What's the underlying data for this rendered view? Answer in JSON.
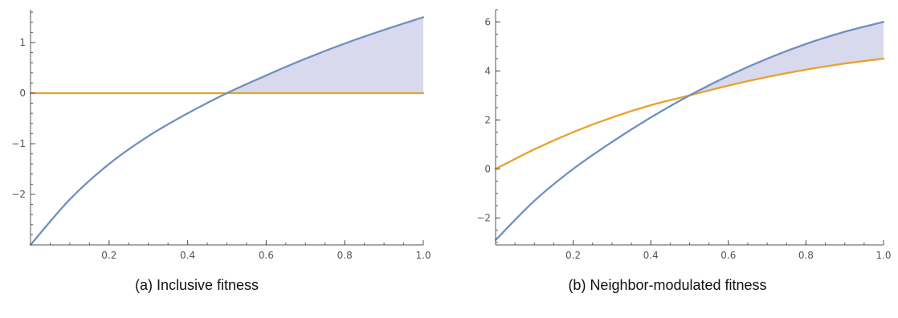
{
  "chart_data": [
    {
      "type": "area",
      "caption": "(a) Inclusive fitness",
      "xlim": [
        0,
        1
      ],
      "ylim": [
        -3,
        1.65
      ],
      "x_ticks": [
        0.2,
        0.4,
        0.6,
        0.8,
        1.0
      ],
      "x_tick_labels": [
        "0.2",
        "0.4",
        "0.6",
        "0.8",
        "1.0"
      ],
      "x_minor_step": 0.05,
      "y_ticks": [
        -2,
        -1,
        0,
        1
      ],
      "y_tick_labels": [
        "−2",
        "−1",
        "0",
        "1"
      ],
      "y_minor_step": 0.2,
      "x": [
        0,
        0.1,
        0.2,
        0.3,
        0.4,
        0.5,
        0.6,
        0.7,
        0.8,
        0.9,
        1.0
      ],
      "series": [
        {
          "color": "#6f8fc2",
          "values": [
            -3.0,
            -2.1,
            -1.4,
            -0.85,
            -0.4,
            0.0,
            0.35,
            0.68,
            0.98,
            1.25,
            1.5
          ]
        },
        {
          "color": "#e9a12b",
          "values": [
            0,
            0,
            0,
            0,
            0,
            0,
            0,
            0,
            0,
            0,
            0
          ]
        }
      ],
      "shade": {
        "from_x": 0.5,
        "color": "#d8d9ed"
      },
      "grid": false,
      "legend": "none"
    },
    {
      "type": "area",
      "caption": "(b) Neighbor-modulated fitness",
      "xlim": [
        0,
        1
      ],
      "ylim": [
        -3.1,
        6.5
      ],
      "x_ticks": [
        0.2,
        0.4,
        0.6,
        0.8,
        1.0
      ],
      "x_tick_labels": [
        "0.2",
        "0.4",
        "0.6",
        "0.8",
        "1.0"
      ],
      "x_minor_step": 0.05,
      "y_ticks": [
        -2,
        0,
        2,
        4,
        6
      ],
      "y_tick_labels": [
        "−2",
        "0",
        "2",
        "4",
        "6"
      ],
      "y_minor_step": 0.5,
      "x": [
        0,
        0.1,
        0.2,
        0.3,
        0.4,
        0.5,
        0.6,
        0.7,
        0.8,
        0.9,
        1.0
      ],
      "series": [
        {
          "color": "#6f8fc2",
          "values": [
            -2.9,
            -1.3,
            0.0,
            1.1,
            2.1,
            3.0,
            3.8,
            4.5,
            5.1,
            5.6,
            6.0
          ]
        },
        {
          "color": "#e9a12b",
          "values": [
            0.0,
            0.8,
            1.5,
            2.1,
            2.6,
            3.0,
            3.4,
            3.75,
            4.05,
            4.3,
            4.5
          ]
        }
      ],
      "shade": {
        "from_x": 0.5,
        "color": "#d8d9ed"
      },
      "grid": false,
      "legend": "none"
    }
  ]
}
